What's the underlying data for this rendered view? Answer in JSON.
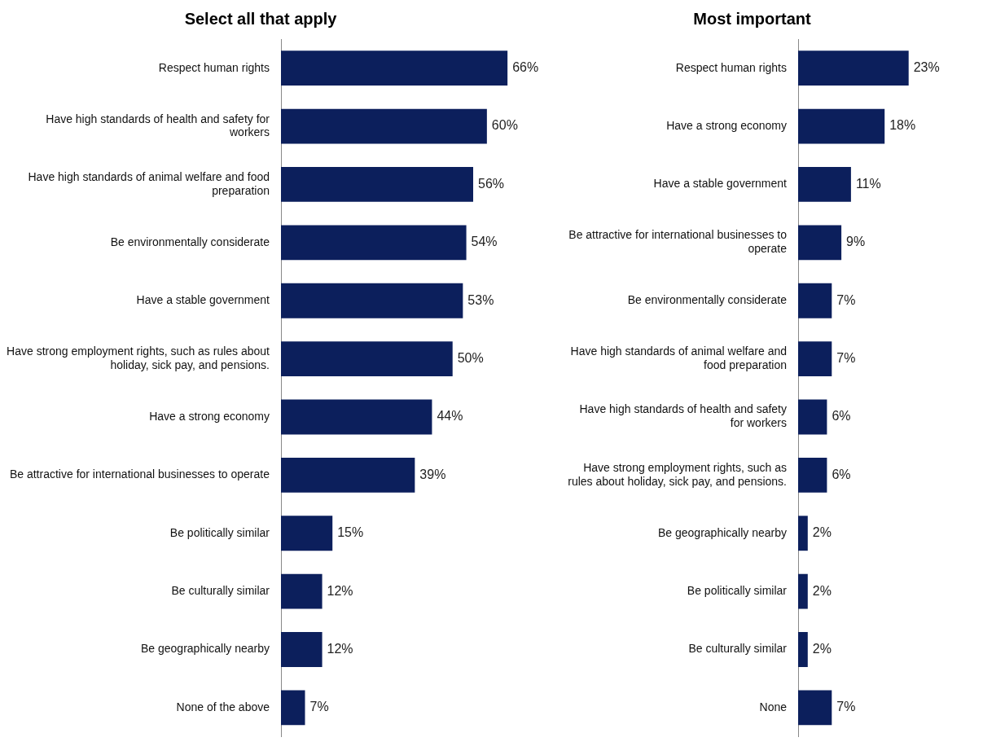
{
  "chart_data": [
    {
      "type": "bar",
      "orientation": "horizontal",
      "title": "Select all that apply",
      "categories": [
        "Respect human rights",
        "Have high standards of health and safety for workers",
        "Have high standards of animal welfare and food preparation",
        "Be environmentally considerate",
        "Have a stable government",
        "Have strong employment rights, such as rules about holiday, sick pay, and pensions.",
        "Have a strong economy",
        "Be attractive for international businesses to operate",
        "Be politically similar",
        "Be culturally similar",
        "Be geographically nearby",
        "None of the above"
      ],
      "values": [
        66,
        60,
        56,
        54,
        53,
        50,
        44,
        39,
        15,
        12,
        12,
        7
      ],
      "value_labels": [
        "66%",
        "60%",
        "56%",
        "54%",
        "53%",
        "50%",
        "44%",
        "39%",
        "15%",
        "12%",
        "12%",
        "7%"
      ],
      "color": "#0c1f5c",
      "legend": false,
      "tick_labels": "y"
    },
    {
      "type": "bar",
      "orientation": "horizontal",
      "title": "Most important",
      "categories": [
        "Respect human rights",
        "Have a strong economy",
        "Have a stable government",
        "Be attractive for international businesses to operate",
        "Be environmentally considerate",
        "Have high standards of animal welfare and food preparation",
        "Have high standards of health and safety for workers",
        "Have strong employment rights, such as rules about holiday, sick pay, and pensions.",
        "Be geographically nearby",
        "Be politically similar",
        "Be culturally similar",
        "None"
      ],
      "values": [
        23,
        18,
        11,
        9,
        7,
        7,
        6,
        6,
        2,
        2,
        2,
        7
      ],
      "value_labels": [
        "23%",
        "18%",
        "11%",
        "9%",
        "7%",
        "7%",
        "6%",
        "6%",
        "2%",
        "2%",
        "2%",
        "7%"
      ],
      "color": "#0c1f5c",
      "legend": false,
      "tick_labels": "y"
    }
  ]
}
